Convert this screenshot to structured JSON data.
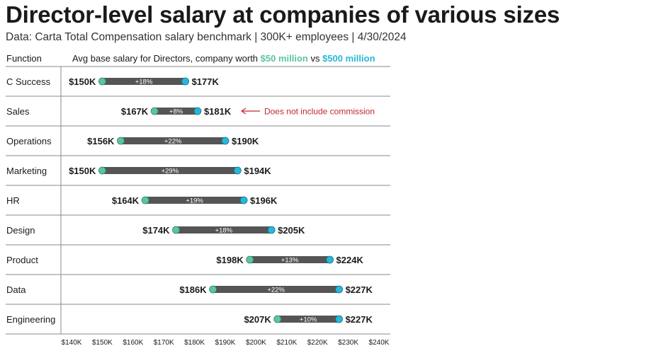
{
  "title": "Director-level salary at companies of various sizes",
  "subtitle": "Data: Carta Total Compensation salary benchmark | 300K+ employees | 4/30/2024",
  "chart_data": {
    "type": "dumbbell",
    "title": "Director-level salary at companies of various sizes",
    "subtitle": "Data: Carta Total Compensation salary benchmark | 300K+ employees | 4/30/2024",
    "function_header": "Function",
    "legend": {
      "prefix": "Avg base salary for Directors, company worth ",
      "series_a": "$50 million",
      "middle": " vs ",
      "series_b": "$500 million"
    },
    "colors": {
      "series_a": "#5cc4a0",
      "series_b": "#27b8d8",
      "bar": "#555555",
      "annotation": "#c0282e",
      "grid": "#8a8a8a"
    },
    "xlim": [
      140,
      240
    ],
    "ticks": [
      {
        "value": 140,
        "label": "$140K"
      },
      {
        "value": 150,
        "label": "$150K"
      },
      {
        "value": 160,
        "label": "$160K"
      },
      {
        "value": 170,
        "label": "$170K"
      },
      {
        "value": 180,
        "label": "$180K"
      },
      {
        "value": 190,
        "label": "$190K"
      },
      {
        "value": 200,
        "label": "$200K"
      },
      {
        "value": 210,
        "label": "$210K"
      },
      {
        "value": 220,
        "label": "$220K"
      },
      {
        "value": 230,
        "label": "$230K"
      },
      {
        "value": 240,
        "label": "$240K"
      }
    ],
    "rows": [
      {
        "function": "C Success",
        "low": 150,
        "high": 177,
        "low_label": "$150K",
        "high_label": "$177K",
        "change": "+18%"
      },
      {
        "function": "Sales",
        "low": 167,
        "high": 181,
        "low_label": "$167K",
        "high_label": "$181K",
        "change": "+8%"
      },
      {
        "function": "Operations",
        "low": 156,
        "high": 190,
        "low_label": "$156K",
        "high_label": "$190K",
        "change": "+22%"
      },
      {
        "function": "Marketing",
        "low": 150,
        "high": 194,
        "low_label": "$150K",
        "high_label": "$194K",
        "change": "+29%"
      },
      {
        "function": "HR",
        "low": 164,
        "high": 196,
        "low_label": "$164K",
        "high_label": "$196K",
        "change": "+19%"
      },
      {
        "function": "Design",
        "low": 174,
        "high": 205,
        "low_label": "$174K",
        "high_label": "$205K",
        "change": "+18%"
      },
      {
        "function": "Product",
        "low": 198,
        "high": 224,
        "low_label": "$198K",
        "high_label": "$224K",
        "change": "+13%"
      },
      {
        "function": "Data",
        "low": 186,
        "high": 227,
        "low_label": "$186K",
        "high_label": "$227K",
        "change": "+22%"
      },
      {
        "function": "Engineering",
        "low": 207,
        "high": 227,
        "low_label": "$207K",
        "high_label": "$227K",
        "change": "+10%"
      }
    ],
    "annotations": [
      {
        "row": "Sales",
        "text": "Does not include commission"
      }
    ]
  }
}
